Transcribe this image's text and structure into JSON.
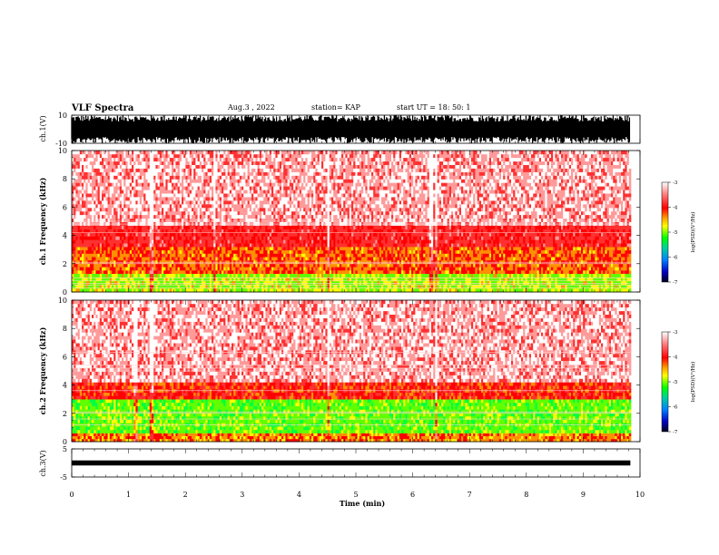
{
  "header": {
    "title": "VLF Spectra",
    "date": "Aug.3 , 2022",
    "station": "station= KAP",
    "start": "start UT = 18: 50: 1"
  },
  "chart_data": [
    {
      "type": "line",
      "panel": "waveform ch.1",
      "ylabel": "ch.1(V)",
      "ylim": [
        -10,
        10
      ],
      "yticks": [
        "10",
        "-10"
      ],
      "xlim": [
        0,
        10
      ],
      "fill_color": "#000000"
    },
    {
      "type": "heatmap",
      "panel": "spectrogram ch.1",
      "ylabel": "ch.1 Frequency (kHz)",
      "ylim": [
        0,
        10
      ],
      "yticks": [
        "0",
        "2",
        "4",
        "6",
        "8",
        "10"
      ],
      "xlim": [
        0,
        10
      ],
      "colorbar": {
        "label": "log(PSD)(V²/Hz)",
        "ticks": [
          "-3",
          "-4",
          "-5",
          "-6",
          "-7"
        ],
        "range": [
          -7,
          -3
        ]
      },
      "level_bands_khz": [
        {
          "from": 0,
          "to": 1.3,
          "level": -4.8
        },
        {
          "from": 1.3,
          "to": 3.2,
          "level": -4.2
        },
        {
          "from": 3.2,
          "to": 4.7,
          "level": -3.8
        },
        {
          "from": 4.7,
          "to": 10,
          "level": -3.3
        }
      ],
      "tone_lines_khz": [
        0.3,
        0.5,
        0.6,
        0.8,
        1.0,
        2.0,
        2.1,
        4.2,
        4.8,
        5.0
      ],
      "bright_columns_min": [
        1.4,
        2.5,
        4.5,
        6.3,
        6.4
      ]
    },
    {
      "type": "heatmap",
      "panel": "spectrogram ch.2",
      "ylabel": "ch.2 Frequency (kHz)",
      "ylim": [
        0,
        10
      ],
      "yticks": [
        "0",
        "2",
        "4",
        "6",
        "8",
        "10"
      ],
      "xlim": [
        0,
        10
      ],
      "colorbar": {
        "label": "log(PSD)(V²/Hz)",
        "ticks": [
          "-3",
          "-4",
          "-5",
          "-6",
          "-7"
        ],
        "range": [
          -7,
          -3
        ]
      },
      "level_bands_khz": [
        {
          "from": 0,
          "to": 0.6,
          "level": -4.3
        },
        {
          "from": 0.6,
          "to": 3.0,
          "level": -5.0
        },
        {
          "from": 3.0,
          "to": 4.2,
          "level": -4.0
        },
        {
          "from": 4.2,
          "to": 10,
          "level": -3.3
        }
      ],
      "tone_lines_khz": [
        1.2,
        1.6,
        2.0,
        2.1,
        3.6,
        5.0,
        5.2,
        5.4,
        6.3
      ],
      "bright_columns_min": [
        1.1,
        1.4,
        4.5,
        6.4
      ]
    },
    {
      "type": "line",
      "panel": "waveform ch.3",
      "ylabel": "ch.3(V)",
      "ylim": [
        -5,
        5
      ],
      "yticks": [
        "5",
        "-5"
      ],
      "xlim": [
        0,
        10
      ],
      "band": [
        -0.3,
        0.3
      ],
      "fill_color": "#000000"
    }
  ],
  "xaxis": {
    "label": "Time (min)",
    "ticks": [
      "0",
      "1",
      "2",
      "3",
      "4",
      "5",
      "6",
      "7",
      "8",
      "9",
      "10"
    ],
    "range": [
      0,
      10
    ],
    "data_end": 9.83
  }
}
